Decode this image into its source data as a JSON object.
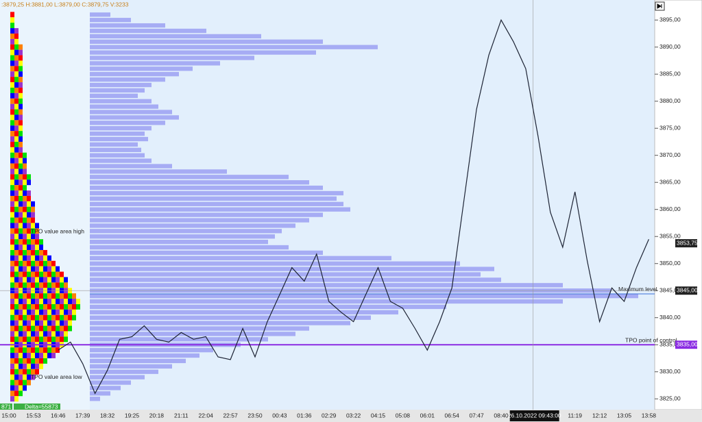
{
  "header": {
    "ohlc": ":3879,25 H:3881,00 L:3879,00 C:3879,75 V:3233"
  },
  "footer": {
    "left": "871",
    "delta": "Delta=55873"
  },
  "chart_data": {
    "type": "line",
    "categories": [
      "15:00",
      "15:53",
      "16:46",
      "17:39",
      "18:32",
      "19:25",
      "20:18",
      "21:11",
      "22:04",
      "22:57",
      "23:50",
      "00:43",
      "01:36",
      "02:29",
      "03:22",
      "04:15",
      "05:08",
      "06:01",
      "06:54",
      "07:47",
      "08:40",
      null,
      null,
      "11:19",
      "12:12",
      "13:05",
      "13:58"
    ],
    "ylim": [
      3823,
      3898.7
    ],
    "yticks": [
      {
        "value": 3825,
        "label": "3825,00"
      },
      {
        "value": 3830,
        "label": "3830,00"
      },
      {
        "value": 3835,
        "label": "3835,00"
      },
      {
        "value": 3840,
        "label": "3840,00"
      },
      {
        "value": 3845,
        "label": "3845,00"
      },
      {
        "value": 3850,
        "label": "3850,00"
      },
      {
        "value": 3855,
        "label": "3855,00"
      },
      {
        "value": 3860,
        "label": "3860,00"
      },
      {
        "value": 3865,
        "label": "3865,00"
      },
      {
        "value": 3870,
        "label": "3870,00"
      },
      {
        "value": 3875,
        "label": "3875,00"
      },
      {
        "value": 3880,
        "label": "3880,00"
      },
      {
        "value": 3885,
        "label": "3885,00"
      },
      {
        "value": 3890,
        "label": "3890,00"
      },
      {
        "value": 3895,
        "label": "3895,00"
      }
    ],
    "series": [
      {
        "color": "#1c2233",
        "x": [
          0,
          0.5,
          1,
          1.5,
          2,
          2.5,
          3,
          3.5,
          4,
          4.5,
          5,
          5.5,
          6,
          6.5,
          7,
          7.5,
          8,
          8.5,
          9,
          9.5,
          10,
          10.5,
          11,
          11.5,
          12,
          12.5,
          13,
          13.5,
          14,
          14.5,
          15,
          15.5,
          16,
          16.5,
          17,
          17.5,
          18,
          18.5,
          19,
          19.5,
          20,
          20.5,
          21,
          21.5,
          22,
          22.5,
          23,
          23.5,
          24,
          24.5,
          25,
          25.5,
          26
        ],
        "values": [
          null,
          null,
          null,
          null,
          3834,
          3835.5,
          3831.5,
          3826,
          3830.25,
          3836,
          3836.5,
          3838.5,
          3836,
          3835.5,
          3837.25,
          3836,
          3836.5,
          3832.75,
          3832.25,
          3838,
          3832.75,
          3839.25,
          3844.25,
          3849.25,
          3846.75,
          3851.75,
          3843,
          3841,
          3839.25,
          3844.25,
          3849.25,
          3843,
          3841.75,
          3838,
          3834,
          3839.25,
          3845.5,
          3862,
          3878.5,
          3888.5,
          3895,
          3891,
          3886,
          3873.5,
          3859.5,
          3853,
          3863.25,
          3850.5,
          3839.25,
          3845.5,
          3843,
          3849.25,
          3854.5
        ]
      }
    ],
    "profile_levels": [
      3896,
      3895,
      3894,
      3893,
      3892,
      3891,
      3890,
      3889,
      3888,
      3887,
      3886,
      3885,
      3884,
      3883,
      3882,
      3881,
      3880,
      3879,
      3878,
      3877,
      3876,
      3875,
      3874,
      3873,
      3872,
      3871,
      3870,
      3869,
      3868,
      3867,
      3866,
      3865,
      3864,
      3863,
      3862,
      3861,
      3860,
      3859,
      3858,
      3857,
      3856,
      3855,
      3854,
      3853,
      3852,
      3851,
      3850,
      3849,
      3848,
      3847,
      3846,
      3845,
      3844,
      3843,
      3842,
      3841,
      3840,
      3839,
      3838,
      3837,
      3836,
      3835,
      3834,
      3833,
      3832,
      3831,
      3830,
      3829,
      3828,
      3827,
      3826,
      3825
    ],
    "volume_profile": {
      "color": "#a6acf4",
      "xlim": [
        0,
        824
      ],
      "values": [
        30,
        60,
        110,
        170,
        250,
        340,
        420,
        330,
        240,
        190,
        150,
        130,
        110,
        90,
        80,
        70,
        90,
        100,
        120,
        130,
        110,
        90,
        80,
        85,
        70,
        75,
        80,
        90,
        120,
        200,
        290,
        320,
        340,
        370,
        360,
        370,
        380,
        340,
        320,
        300,
        280,
        270,
        260,
        290,
        340,
        440,
        540,
        590,
        570,
        600,
        690,
        760,
        800,
        690,
        520,
        450,
        410,
        380,
        320,
        300,
        260,
        220,
        180,
        160,
        140,
        120,
        100,
        80,
        60,
        45,
        30,
        15
      ]
    },
    "tpo_profile": {
      "colors": [
        "#ff0000",
        "#ffff00",
        "#00e000",
        "#0000ff",
        "#ff8000",
        "#9933cc"
      ],
      "values": [
        1,
        1,
        1,
        2,
        2,
        2,
        3,
        3,
        3,
        3,
        3,
        3,
        3,
        3,
        3,
        3,
        3,
        3,
        3,
        3,
        3,
        3,
        3,
        3,
        3,
        3,
        4,
        4,
        4,
        4,
        5,
        5,
        4,
        5,
        5,
        6,
        6,
        6,
        6,
        7,
        7,
        7,
        8,
        8,
        9,
        10,
        11,
        12,
        13,
        14,
        14,
        15,
        16,
        17,
        17,
        16,
        16,
        15,
        15,
        14,
        14,
        13,
        12,
        11,
        9,
        8,
        7,
        6,
        5,
        4,
        3,
        2
      ]
    },
    "levels": [
      {
        "text": "Maximum level",
        "value": 3844.4,
        "color": "#3a6fd8"
      },
      {
        "text": "TPO point of control",
        "value": 3835,
        "color": "#8a2be2"
      }
    ],
    "annotations": [
      {
        "text": "TPO value area high",
        "value": 3855.9
      },
      {
        "text": "TPO value area low",
        "value": 3829
      }
    ],
    "price_tags": [
      {
        "value": 3853.75,
        "label": "3853,75",
        "color": "#222222"
      },
      {
        "value": 3845,
        "label": "3845,00",
        "color": "#222222"
      },
      {
        "value": 3835,
        "label": "3835,00",
        "color": "#8a2be2"
      }
    ],
    "crosshair": {
      "x": 21.3,
      "x_label": "26.10.2022 09:43:00",
      "y": 3845
    }
  }
}
